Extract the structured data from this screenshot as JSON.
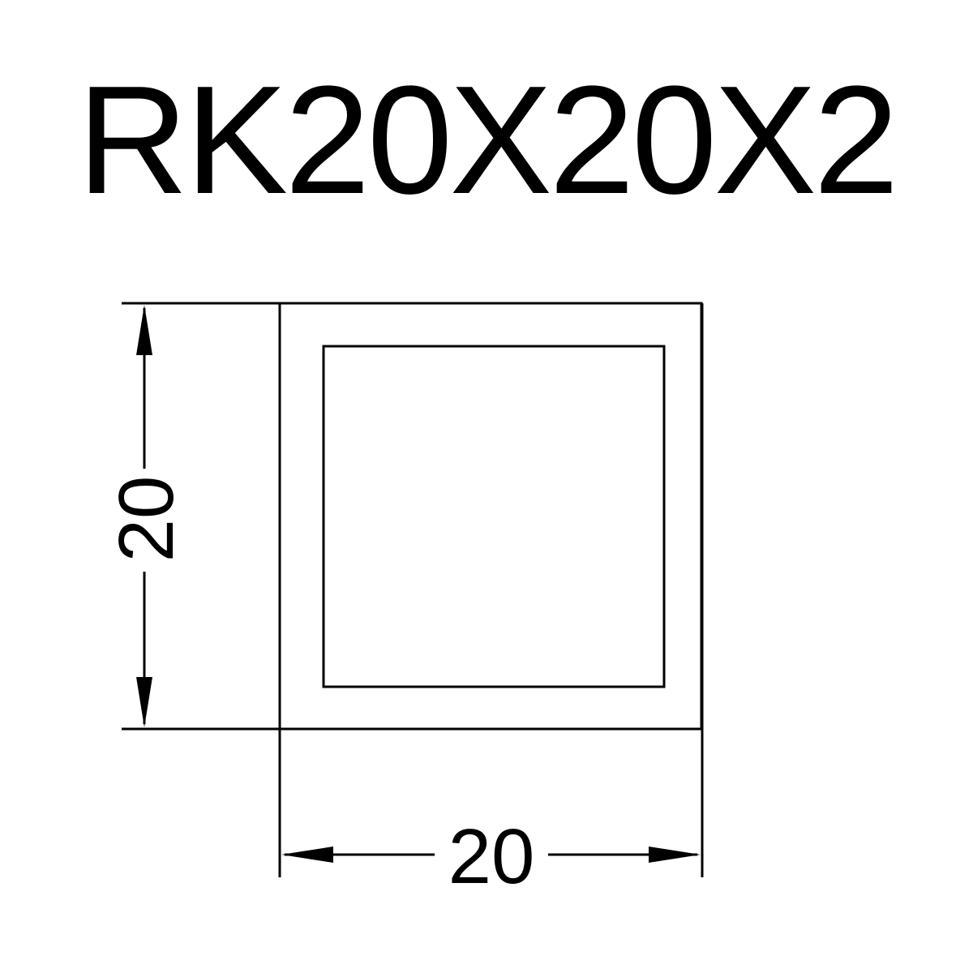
{
  "title": "RK20X20X2",
  "dimensions": {
    "height": "20",
    "width": "20"
  },
  "colors": {
    "line": "#000000",
    "background": "#ffffff"
  }
}
